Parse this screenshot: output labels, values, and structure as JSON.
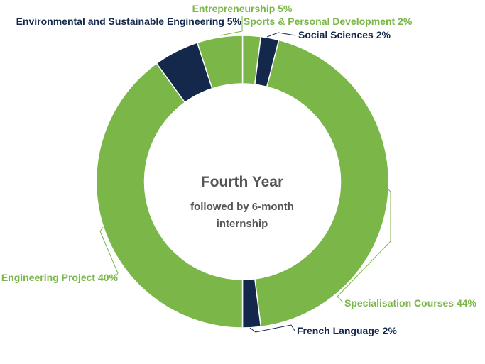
{
  "chart_data": {
    "type": "pie",
    "variant": "donut",
    "center_title": "Fourth Year",
    "center_subtitle_lines": [
      "followed by 6-month",
      "internship"
    ],
    "slices": [
      {
        "label": "Sports & Personal Development",
        "value": 2,
        "color": "#7ab648"
      },
      {
        "label": "Social Sciences",
        "value": 2,
        "color": "#14284b"
      },
      {
        "label": "Specialisation Courses",
        "value": 44,
        "color": "#7ab648"
      },
      {
        "label": "French Language",
        "value": 2,
        "color": "#14284b"
      },
      {
        "label": "Engineering Project",
        "value": 40,
        "color": "#7ab648"
      },
      {
        "label": "Environmental and Sustainable Engineering",
        "value": 5,
        "color": "#14284b"
      },
      {
        "label": "Entrepreneurship",
        "value": 5,
        "color": "#7ab648"
      }
    ],
    "value_suffix": "%",
    "legend": "none"
  }
}
